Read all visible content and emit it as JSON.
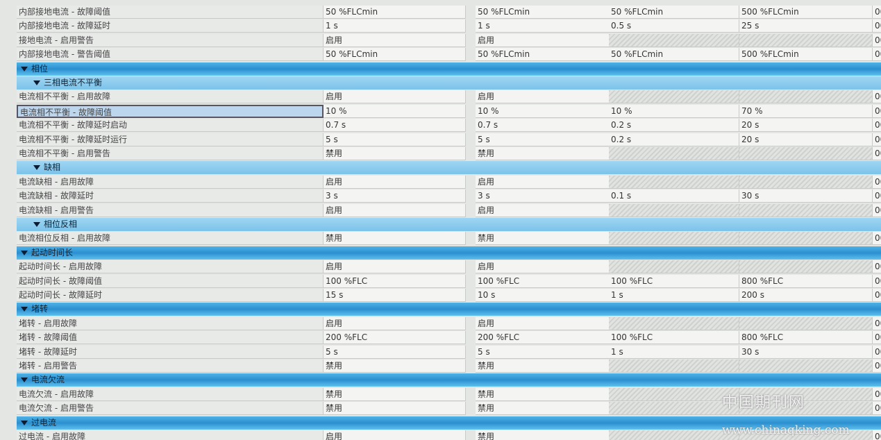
{
  "table": {
    "rows": [
      {
        "cells": [
          "内部接地电流 - 故障阈值",
          "50 %FLCmin",
          "50 %FLCmin",
          "50 %FLCmin",
          "500 %FLCmin",
          "00"
        ]
      },
      {
        "cells": [
          "内部接地电流 - 故障延时",
          "1 s",
          "1 s",
          "0.5 s",
          "25 s",
          "00"
        ]
      },
      {
        "cells": [
          "接地电流 - 启用警告",
          "启用",
          "启用",
          null,
          null,
          "00"
        ]
      },
      {
        "cells": [
          "内部接地电流 - 警告阈值",
          "50 %FLCmin",
          "50 %FLCmin",
          "50 %FLCmin",
          "500 %FLCmin",
          "00"
        ]
      },
      {
        "group": "相位"
      },
      {
        "subgroup": "三相电流不平衡"
      },
      {
        "cells": [
          "电流相不平衡 - 启用故障",
          "启用",
          "启用",
          null,
          null,
          "00"
        ]
      },
      {
        "cells": [
          "电流相不平衡 - 故障阈值",
          "10 %",
          "10 %",
          "10 %",
          "70 %",
          "00"
        ],
        "selected": true
      },
      {
        "cells": [
          "电流相不平衡 - 故障延时启动",
          "0.7 s",
          "0.7 s",
          "0.2 s",
          "20 s",
          "00"
        ]
      },
      {
        "cells": [
          "电流相不平衡 - 故障延时运行",
          "5 s",
          "5 s",
          "0.2 s",
          "20 s",
          "00"
        ]
      },
      {
        "cells": [
          "电流相不平衡 - 启用警告",
          "禁用",
          "禁用",
          null,
          null,
          "00"
        ]
      },
      {
        "subgroup": "缺相"
      },
      {
        "cells": [
          "电流缺相 - 启用故障",
          "启用",
          "启用",
          null,
          null,
          "00"
        ]
      },
      {
        "cells": [
          "电流缺相 - 故障延时",
          "3 s",
          "3 s",
          "0.1 s",
          "30 s",
          "00"
        ]
      },
      {
        "cells": [
          "电流缺相 - 启用警告",
          "启用",
          "启用",
          null,
          null,
          "00"
        ]
      },
      {
        "subgroup": "相位反相"
      },
      {
        "cells": [
          "电流相位反相 - 启用故障",
          "禁用",
          "禁用",
          null,
          null,
          "00"
        ]
      },
      {
        "group": "起动时间长"
      },
      {
        "cells": [
          "起动时间长 - 启用故障",
          "启用",
          "启用",
          null,
          null,
          "00"
        ]
      },
      {
        "cells": [
          "起动时间长 - 故障阈值",
          "100 %FLC",
          "100 %FLC",
          "100 %FLC",
          "800 %FLC",
          "00"
        ]
      },
      {
        "cells": [
          "起动时间长 - 故障延时",
          "15 s",
          "10 s",
          "1 s",
          "200 s",
          "00"
        ]
      },
      {
        "group": "堵转"
      },
      {
        "cells": [
          "堵转 - 启用故障",
          "启用",
          "启用",
          null,
          null,
          "00"
        ]
      },
      {
        "cells": [
          "堵转 - 故障阈值",
          "200 %FLC",
          "200 %FLC",
          "100 %FLC",
          "800 %FLC",
          "00"
        ]
      },
      {
        "cells": [
          "堵转 - 故障延时",
          "5 s",
          "5 s",
          "1 s",
          "30 s",
          "00"
        ]
      },
      {
        "cells": [
          "堵转 - 启用警告",
          "禁用",
          "禁用",
          null,
          null,
          "00"
        ]
      },
      {
        "group": "电流欠流"
      },
      {
        "cells": [
          "电流欠流 - 启用故障",
          "禁用",
          "禁用",
          null,
          null,
          "00"
        ]
      },
      {
        "cells": [
          "电流欠流 - 启用警告",
          "禁用",
          "禁用",
          null,
          null,
          "00"
        ]
      },
      {
        "group": "过电流"
      },
      {
        "cells": [
          "过电流 - 启用故障",
          "启用",
          "禁用",
          null,
          null,
          "00"
        ]
      }
    ]
  },
  "watermark": {
    "title": "中国期刊网",
    "url": "www.chinaqking.com"
  }
}
